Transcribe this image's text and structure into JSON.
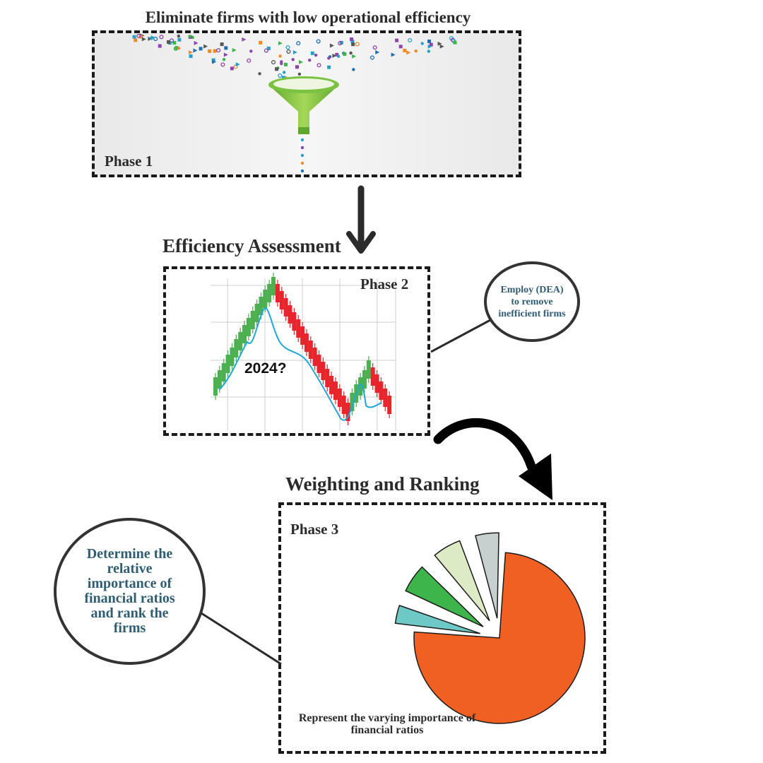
{
  "phase1": {
    "title": "Eliminate firms with low operational efficiency",
    "label": "Phase 1"
  },
  "phase2": {
    "heading": "Efficiency Assessment",
    "label": "Phase 2",
    "chart_overlay_text": "2024?",
    "callout": "Employ (DEA) to remove inefficient firms"
  },
  "phase3": {
    "heading": "Weighting and Ranking",
    "label": "Phase 3",
    "callout": "Determine the relative importance of financial ratios and rank the firms",
    "pie_caption": "Represent the varying importance of financial ratios"
  },
  "colors": {
    "funnel_green": "#7cc242",
    "candle_up": "#4caf50",
    "candle_down": "#e8242c",
    "trend_line": "#1fa7dc",
    "callout_text": "#2f5d73",
    "pie": [
      "#f06022",
      "#6ec9c6",
      "#3db54a",
      "#dcebc6",
      "#c7cfcf"
    ]
  },
  "icons": [
    "funnel-icon",
    "down-arrow-icon",
    "curved-arrow-icon"
  ],
  "chart_data": [
    {
      "type": "pie",
      "title": "",
      "values": [
        75,
        5,
        7,
        7,
        6
      ],
      "colors": [
        "#f06022",
        "#6ec9c6",
        "#3db54a",
        "#dcebc6",
        "#c7cfcf"
      ],
      "exploded": true
    }
  ]
}
